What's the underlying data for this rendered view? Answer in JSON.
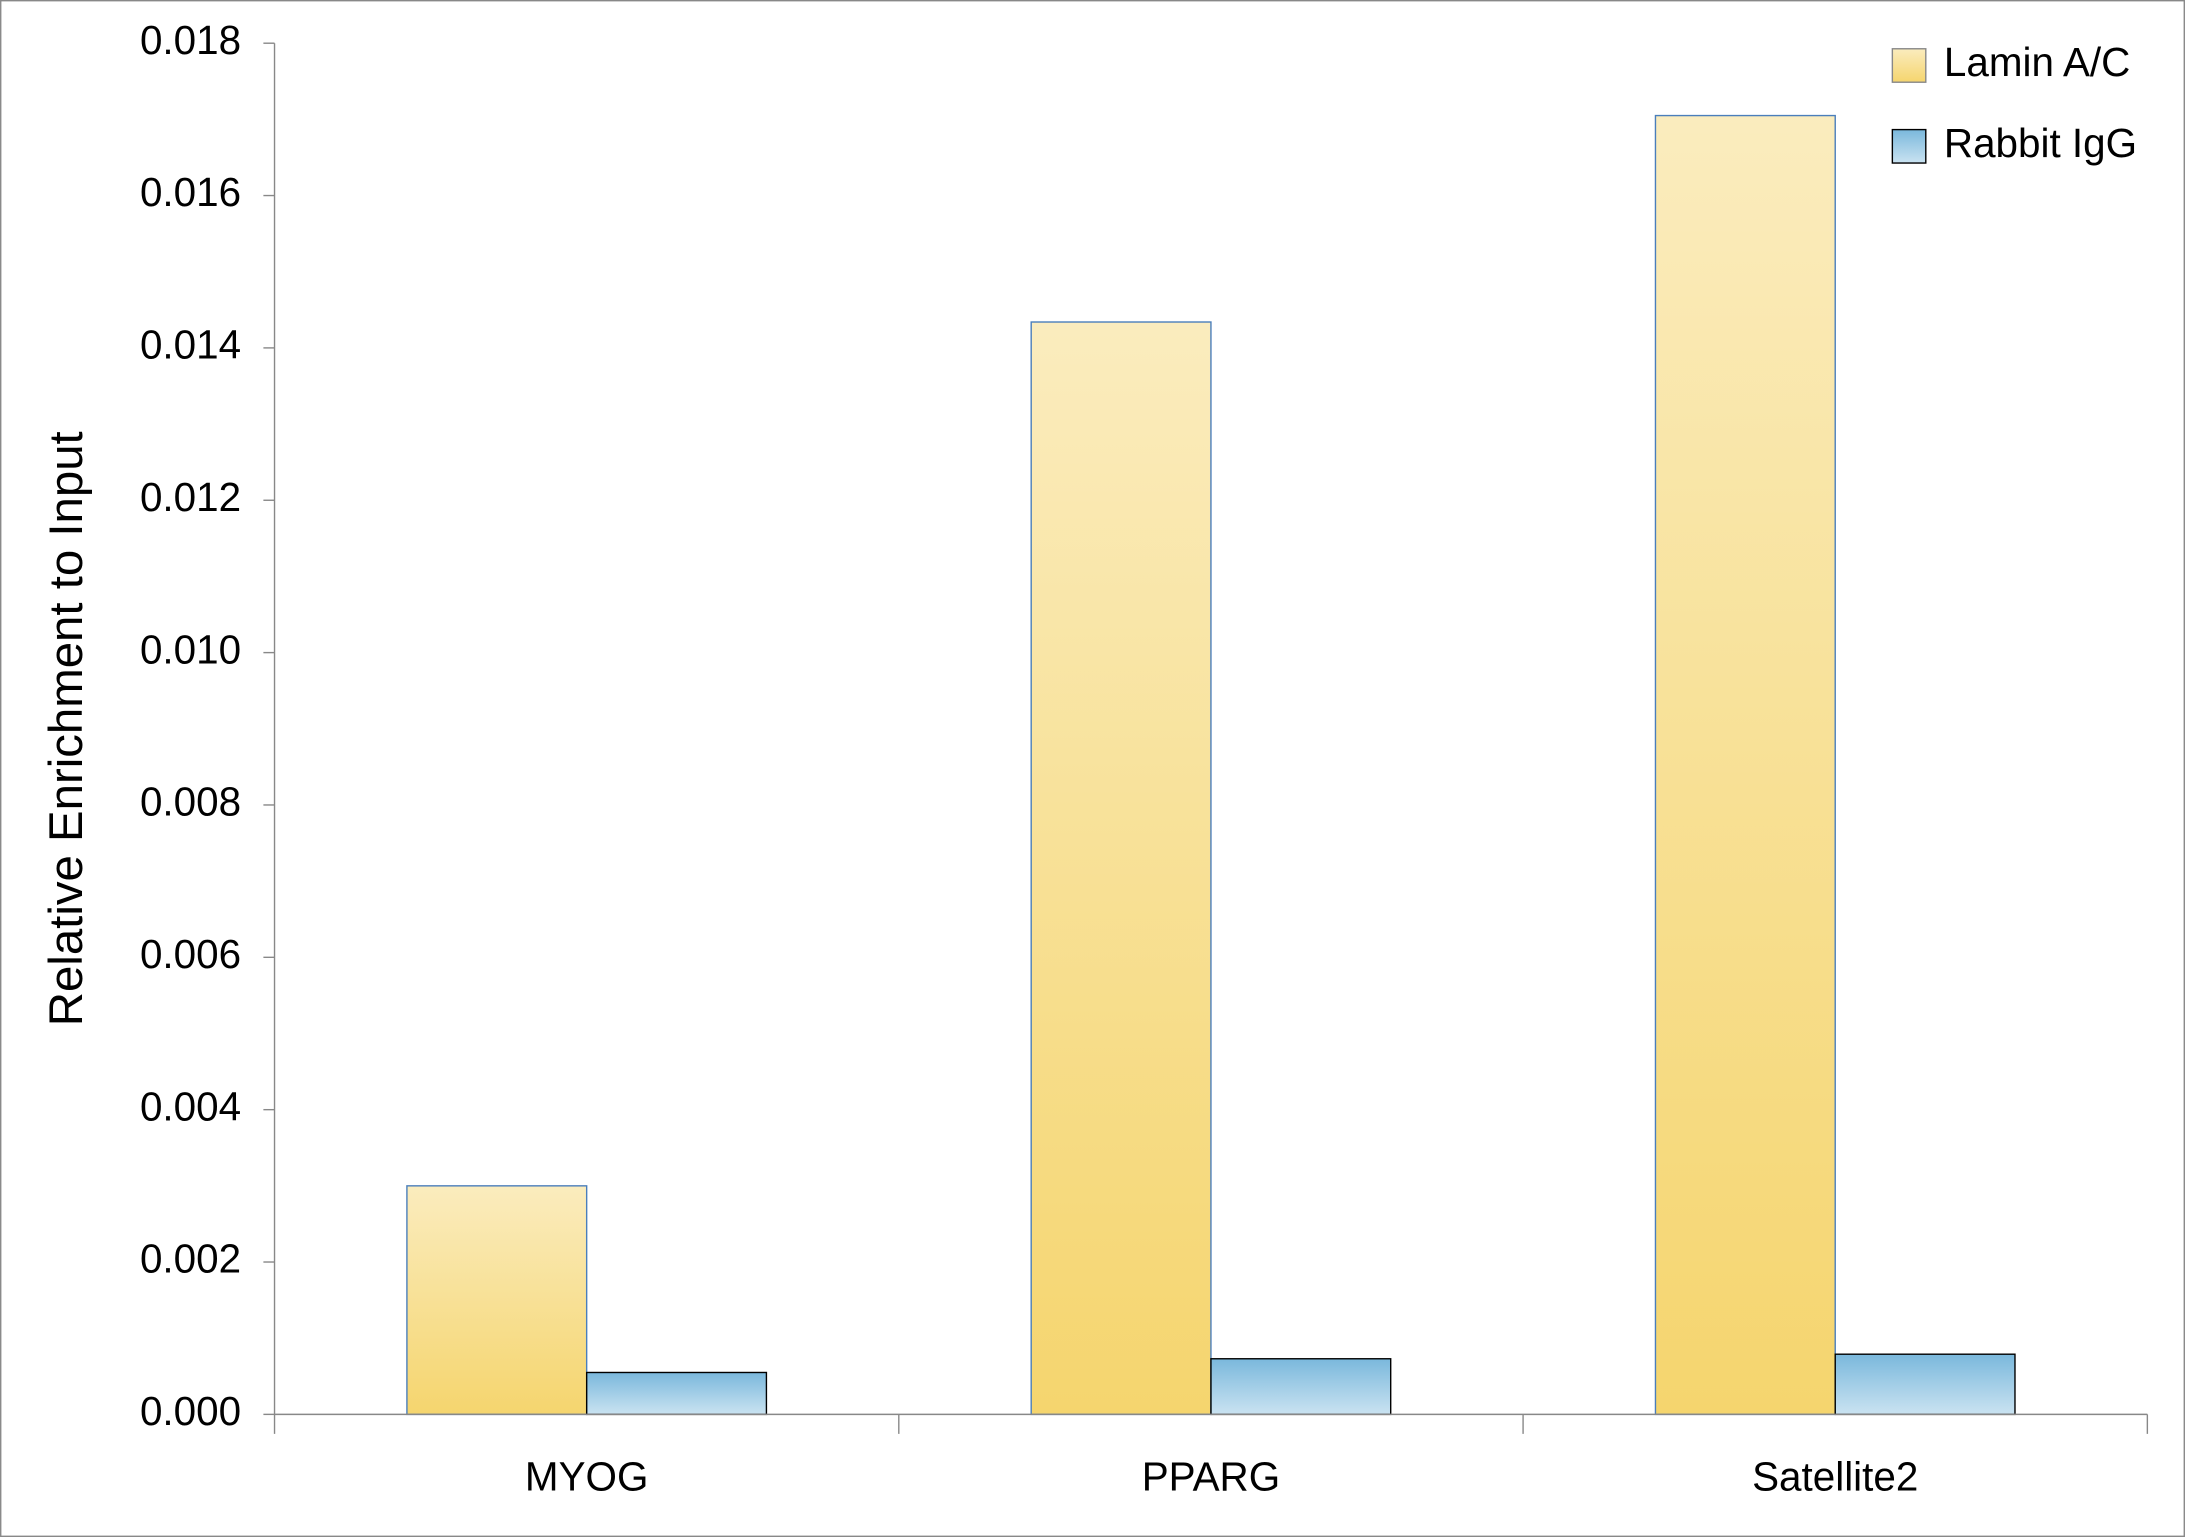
{
  "chart_data": {
    "type": "bar",
    "y_label": "Relative Enrichment to Input",
    "categories": [
      "MYOG",
      "PPARG",
      "Satellite2"
    ],
    "series": [
      {
        "name": "Lamin A/C",
        "color": "#f5d56e",
        "values": [
          0.003,
          0.01434,
          0.01705
        ]
      },
      {
        "name": "Rabbit IgG",
        "color": "#7ab8dc",
        "values": [
          0.00055,
          0.00073,
          0.00079
        ]
      }
    ],
    "ylim": [
      0,
      0.018
    ],
    "yticks": [
      {
        "value": 0,
        "label": "0.000"
      },
      {
        "value": 0.002,
        "label": "0.002"
      },
      {
        "value": 0.004,
        "label": "0.004"
      },
      {
        "value": 0.006,
        "label": "0.006"
      },
      {
        "value": 0.008,
        "label": "0.008"
      },
      {
        "value": 0.01,
        "label": "0.010"
      },
      {
        "value": 0.012,
        "label": "0.012"
      },
      {
        "value": 0.014,
        "label": "0.014"
      },
      {
        "value": 0.016,
        "label": "0.016"
      },
      {
        "value": 0.018,
        "label": "0.018"
      }
    ],
    "legend": "top-right"
  }
}
